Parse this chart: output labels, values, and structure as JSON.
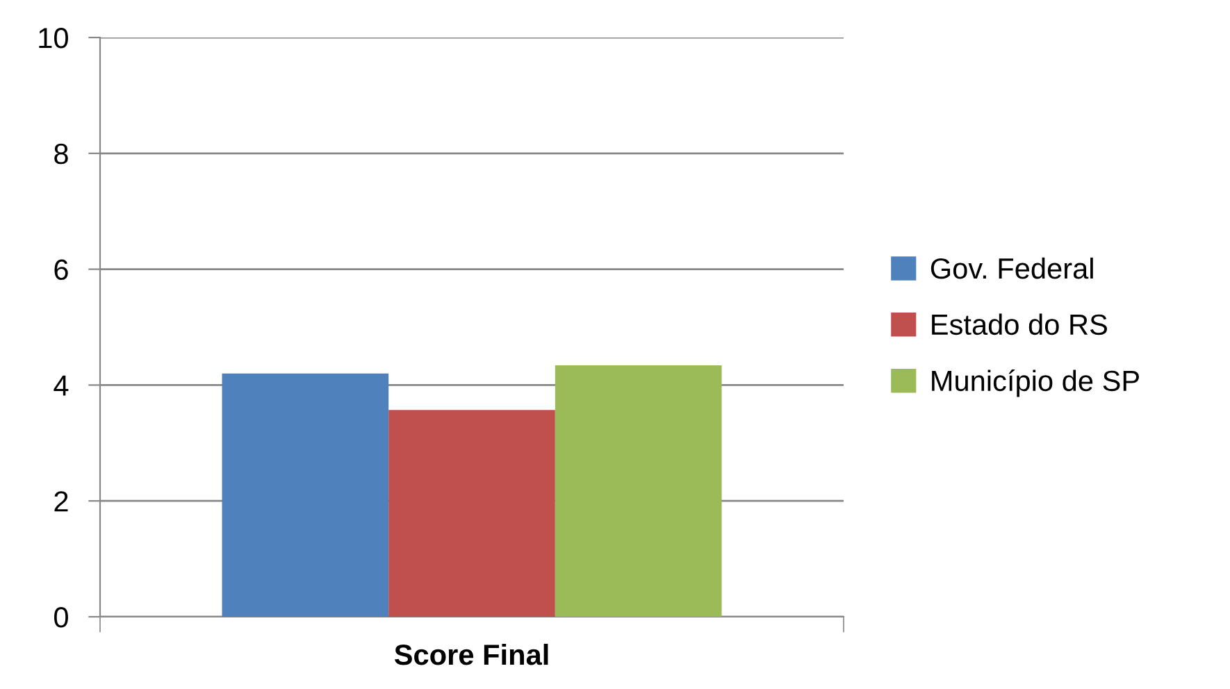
{
  "chart_data": {
    "type": "bar",
    "categories": [
      "Score Final"
    ],
    "series": [
      {
        "name": "Gov. Federal",
        "color": "#4f81bd",
        "values": [
          4.2
        ]
      },
      {
        "name": "Estado do RS",
        "color": "#c0504d",
        "values": [
          3.57
        ]
      },
      {
        "name": "Município de SP",
        "color": "#9bbb59",
        "values": [
          4.34
        ]
      }
    ],
    "ylim": [
      0,
      10
    ],
    "yticks": [
      0,
      2,
      4,
      6,
      8,
      10
    ],
    "grid": "y",
    "legend": "right"
  }
}
